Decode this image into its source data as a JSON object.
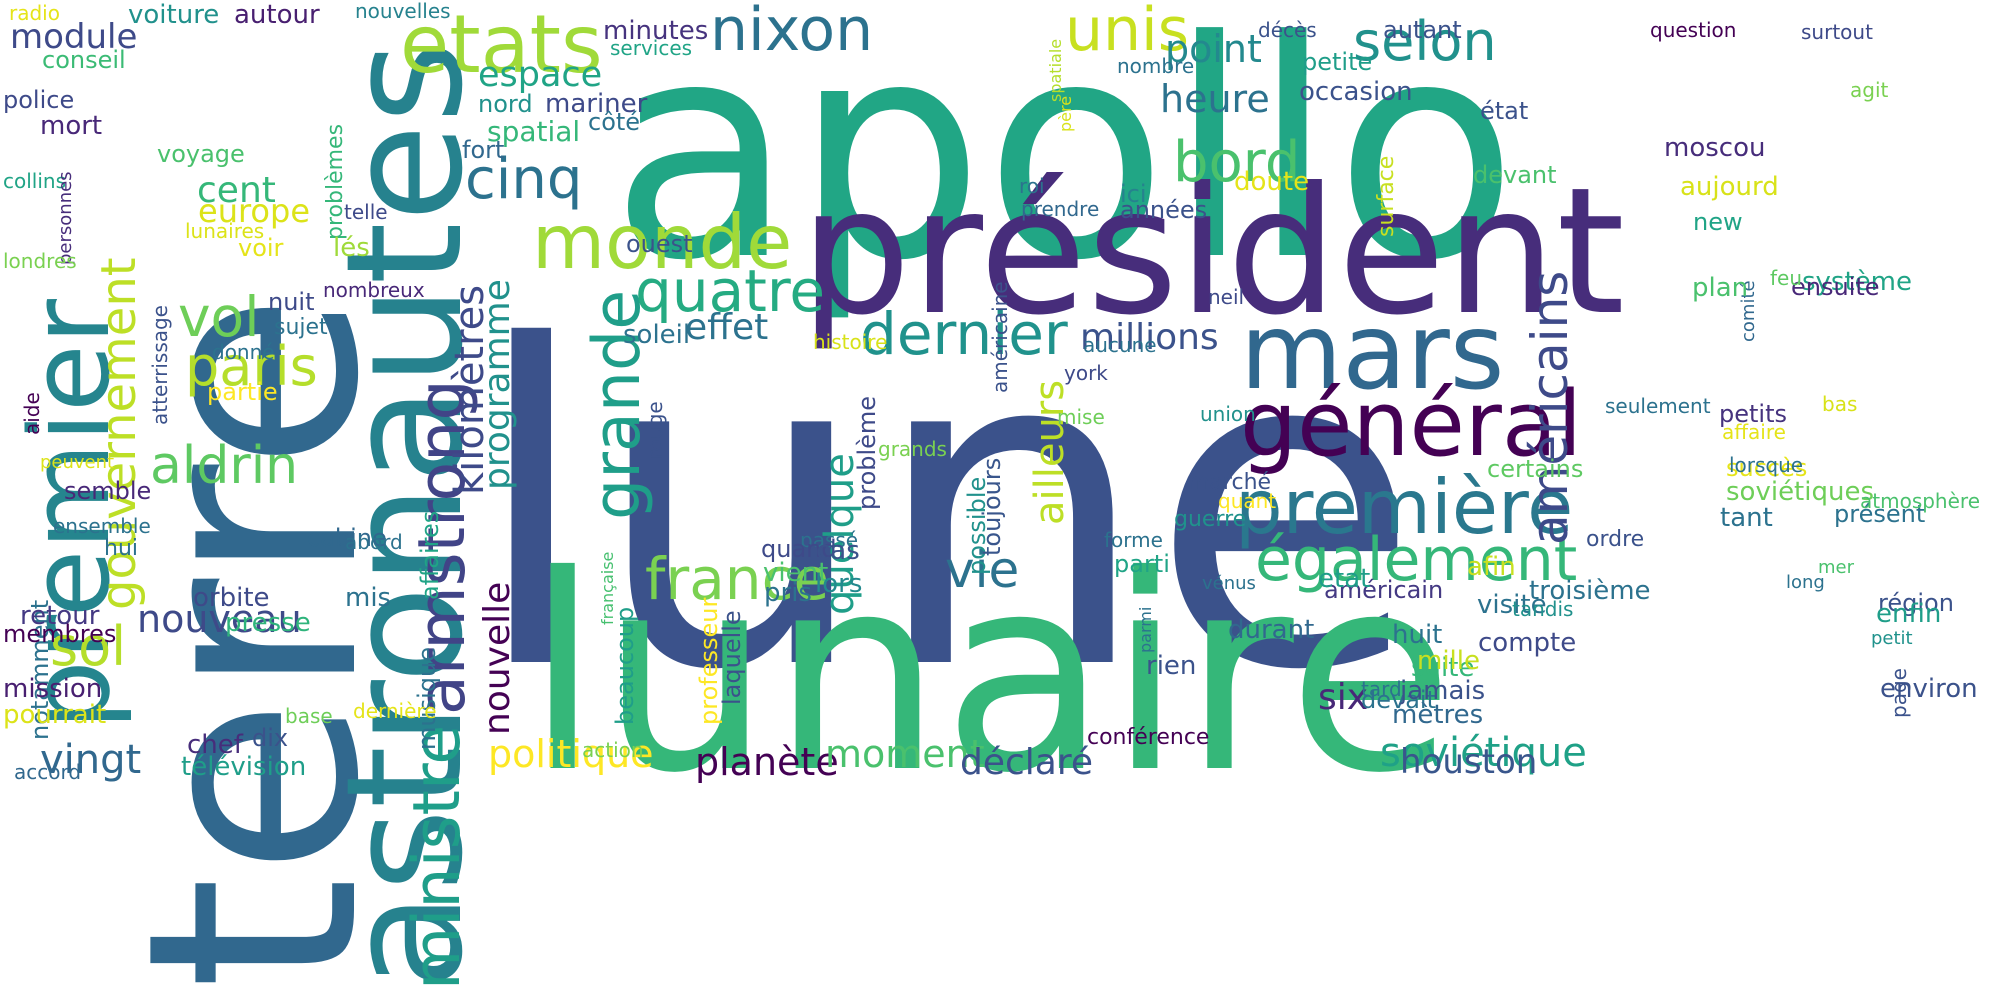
{
  "words": [
    {
      "text": "lune",
      "color": "#3b528b"
    },
    {
      "text": "apollo",
      "color": "#21a685"
    },
    {
      "text": "terre",
      "color": "#31688e"
    },
    {
      "text": "lunaire",
      "color": "#35b779"
    },
    {
      "text": "président",
      "color": "#472d7b"
    },
    {
      "text": "astronautes",
      "color": "#26828e"
    },
    {
      "text": "premier",
      "color": "#25858e"
    },
    {
      "text": "mars",
      "color": "#31688e"
    },
    {
      "text": "général",
      "color": "#440154"
    },
    {
      "text": "première",
      "color": "#2a788e"
    },
    {
      "text": "armstrong",
      "color": "#414487"
    },
    {
      "text": "ministre",
      "color": "#1f9e89"
    },
    {
      "text": "monde",
      "color": "#a0da39"
    },
    {
      "text": "etats",
      "color": "#a0da39"
    },
    {
      "text": "grande",
      "color": "#1f9e89"
    },
    {
      "text": "nixon",
      "color": "#2c728e"
    },
    {
      "text": "unis",
      "color": "#c8e020"
    },
    {
      "text": "également",
      "color": "#35b779"
    },
    {
      "text": "gouvernement",
      "color": "#bddf26"
    },
    {
      "text": "quatre",
      "color": "#25ab82"
    },
    {
      "text": "france",
      "color": "#7ad151"
    },
    {
      "text": "dernier",
      "color": "#20928c"
    },
    {
      "text": "selon",
      "color": "#21918c"
    },
    {
      "text": "américains",
      "color": "#3e4a89"
    },
    {
      "text": "cinq",
      "color": "#2c728e"
    },
    {
      "text": "bord",
      "color": "#4ac16d"
    },
    {
      "text": "vol",
      "color": "#6ece58"
    },
    {
      "text": "paris",
      "color": "#b5de2b"
    },
    {
      "text": "aldrin",
      "color": "#5ec962"
    },
    {
      "text": "sol",
      "color": "#b5de2b"
    },
    {
      "text": "vie",
      "color": "#2c728e"
    },
    {
      "text": "kilomètres",
      "color": "#3e4a89"
    },
    {
      "text": "quelque",
      "color": "#1f9e89"
    },
    {
      "text": "programme",
      "color": "#21918c"
    },
    {
      "text": "nouvelle",
      "color": "#440154"
    },
    {
      "text": "ailleurs",
      "color": "#bddf26"
    },
    {
      "text": "soviétique",
      "color": "#1fa187"
    },
    {
      "text": "politique",
      "color": "#fde725"
    },
    {
      "text": "planète",
      "color": "#440154"
    },
    {
      "text": "moment",
      "color": "#4ac16d"
    },
    {
      "text": "déclaré",
      "color": "#3b528b"
    },
    {
      "text": "houston",
      "color": "#39568c"
    },
    {
      "text": "vingt",
      "color": "#31688e"
    },
    {
      "text": "nouveau",
      "color": "#3e4a89"
    },
    {
      "text": "point",
      "color": "#23898e"
    },
    {
      "text": "heure",
      "color": "#2c728e"
    },
    {
      "text": "effet",
      "color": "#2c728e"
    },
    {
      "text": "millions",
      "color": "#3b528b"
    },
    {
      "text": "espace",
      "color": "#20a486"
    },
    {
      "text": "module",
      "color": "#3e4a89"
    },
    {
      "text": "cent",
      "color": "#35b779"
    },
    {
      "text": "europe",
      "color": "#dce319"
    },
    {
      "text": "six",
      "color": "#482878"
    },
    {
      "text": "spatial",
      "color": "#35b779"
    },
    {
      "text": "mariner",
      "color": "#3e4a89"
    },
    {
      "text": "nord",
      "color": "#21918c"
    },
    {
      "text": "fort",
      "color": "#31688e"
    },
    {
      "text": "côté",
      "color": "#2c728e"
    },
    {
      "text": "minutes",
      "color": "#46337e"
    },
    {
      "text": "services",
      "color": "#20a486"
    },
    {
      "text": "voiture",
      "color": "#21918c"
    },
    {
      "text": "autour",
      "color": "#481f70"
    },
    {
      "text": "nouvelles",
      "color": "#26828e"
    },
    {
      "text": "radio",
      "color": "#e5e419"
    },
    {
      "text": "conseil",
      "color": "#3bbb75"
    },
    {
      "text": "police",
      "color": "#3e4a89"
    },
    {
      "text": "mort",
      "color": "#482878"
    },
    {
      "text": "voyage",
      "color": "#4ac16d"
    },
    {
      "text": "collins",
      "color": "#20a486"
    },
    {
      "text": "personnes",
      "color": "#472d7b"
    },
    {
      "text": "problèmes",
      "color": "#35b779"
    },
    {
      "text": "lunaires",
      "color": "#dce319"
    },
    {
      "text": "voir",
      "color": "#e5e419"
    },
    {
      "text": "telle",
      "color": "#3e4a89"
    },
    {
      "text": "lés",
      "color": "#9fda3a"
    },
    {
      "text": "londres",
      "color": "#7ad151"
    },
    {
      "text": "atterrissage",
      "color": "#3b528b"
    },
    {
      "text": "nombreux",
      "color": "#482878"
    },
    {
      "text": "aide",
      "color": "#440154"
    },
    {
      "text": "nuit",
      "color": "#3e4a89"
    },
    {
      "text": "sujet",
      "color": "#2c728e"
    },
    {
      "text": "donné",
      "color": "#2c728e"
    },
    {
      "text": "partie",
      "color": "#fde725"
    },
    {
      "text": "peuvent",
      "color": "#dce319"
    },
    {
      "text": "semble",
      "color": "#482878"
    },
    {
      "text": "notamment",
      "color": "#2c728e"
    },
    {
      "text": "ensemble",
      "color": "#2c728e"
    },
    {
      "text": "hui",
      "color": "#2c728e"
    },
    {
      "text": "retour",
      "color": "#443983"
    },
    {
      "text": "membres",
      "color": "#440154"
    },
    {
      "text": "mission",
      "color": "#481f70"
    },
    {
      "text": "pourrait",
      "color": "#dce319"
    },
    {
      "text": "chef",
      "color": "#472d7b"
    },
    {
      "text": "dix",
      "color": "#3b528b"
    },
    {
      "text": "télévision",
      "color": "#1f9e89"
    },
    {
      "text": "accord",
      "color": "#31688e"
    },
    {
      "text": "affaires",
      "color": "#20a486"
    },
    {
      "text": "cabine",
      "color": "#31688e"
    },
    {
      "text": "abord",
      "color": "#2c728e"
    },
    {
      "text": "mis",
      "color": "#2c728e"
    },
    {
      "text": "musique",
      "color": "#2c728e"
    },
    {
      "text": "orbite",
      "color": "#3e4a89"
    },
    {
      "text": "presse",
      "color": "#2fb47c"
    },
    {
      "text": "base",
      "color": "#6ece58"
    },
    {
      "text": "dernière",
      "color": "#e5e419"
    },
    {
      "text": "beaucoup",
      "color": "#1f9e89"
    },
    {
      "text": "professeur",
      "color": "#fde725"
    },
    {
      "text": "action",
      "color": "#7ad151"
    },
    {
      "text": "laquelle",
      "color": "#3b528b"
    },
    {
      "text": "française",
      "color": "#46c06f"
    },
    {
      "text": "passé",
      "color": "#2c728e"
    },
    {
      "text": "soleil",
      "color": "#2c728e"
    },
    {
      "text": "ouest",
      "color": "#3b528b"
    },
    {
      "text": "histoire",
      "color": "#d8e219"
    },
    {
      "text": "problème",
      "color": "#3e4a89"
    },
    {
      "text": "possible",
      "color": "#21918c"
    },
    {
      "text": "toujours",
      "color": "#39568c"
    },
    {
      "text": "grands",
      "color": "#7ad151"
    },
    {
      "text": "quand",
      "color": "#3e4a89"
    },
    {
      "text": "vient",
      "color": "#4ac16d"
    },
    {
      "text": "pris",
      "color": "#2c728e"
    },
    {
      "text": "lors",
      "color": "#23898e"
    },
    {
      "text": "cas",
      "color": "#3b528b"
    },
    {
      "text": "rouge",
      "color": "#3b528b"
    },
    {
      "text": "américaine",
      "color": "#3b528b"
    },
    {
      "text": "roi",
      "color": "#2c728e"
    },
    {
      "text": "père",
      "color": "#d8e219"
    },
    {
      "text": "spatiale",
      "color": "#b5de2b"
    },
    {
      "text": "nombre",
      "color": "#2c728e"
    },
    {
      "text": "prendre",
      "color": "#31688e"
    },
    {
      "text": "années",
      "color": "#3b528b"
    },
    {
      "text": "ici",
      "color": "#26828e"
    },
    {
      "text": "york",
      "color": "#3e4a89"
    },
    {
      "text": "aucune",
      "color": "#2c728e"
    },
    {
      "text": "neil",
      "color": "#3e4a89"
    },
    {
      "text": "mise",
      "color": "#6ece58"
    },
    {
      "text": "union",
      "color": "#21918c"
    },
    {
      "text": "marché",
      "color": "#3b528b"
    },
    {
      "text": "quant",
      "color": "#fde725"
    },
    {
      "text": "guerre",
      "color": "#20928c"
    },
    {
      "text": "forme",
      "color": "#2c728e"
    },
    {
      "text": "parti",
      "color": "#20a486"
    },
    {
      "text": "vénus",
      "color": "#2c728e"
    },
    {
      "text": "conférence",
      "color": "#440154"
    },
    {
      "text": "rien",
      "color": "#3b528b"
    },
    {
      "text": "parmi",
      "color": "#2c728e"
    },
    {
      "text": "durant",
      "color": "#31688e"
    },
    {
      "text": "huit",
      "color": "#2c728e"
    },
    {
      "text": "suite",
      "color": "#35b779"
    },
    {
      "text": "devait",
      "color": "#2c728e"
    },
    {
      "text": "tard",
      "color": "#2c728e"
    },
    {
      "text": "page",
      "color": "#3b528b"
    },
    {
      "text": "jamais",
      "color": "#3b528b"
    },
    {
      "text": "mètres",
      "color": "#31688e"
    },
    {
      "text": "mille",
      "color": "#c8e020"
    },
    {
      "text": "compte",
      "color": "#3e4a89"
    },
    {
      "text": "visite",
      "color": "#2c728e"
    },
    {
      "text": "troisième",
      "color": "#2c728e"
    },
    {
      "text": "tandis",
      "color": "#21918c"
    },
    {
      "text": "américain",
      "color": "#443983"
    },
    {
      "text": "etat",
      "color": "#1f9e89"
    },
    {
      "text": "soviétiques",
      "color": "#6ece58"
    },
    {
      "text": "certains",
      "color": "#5ec962"
    },
    {
      "text": "succès",
      "color": "#e5e419"
    },
    {
      "text": "lorsque",
      "color": "#2c728e"
    },
    {
      "text": "ordre",
      "color": "#3b528b"
    },
    {
      "text": "afin",
      "color": "#c8e020"
    },
    {
      "text": "tant",
      "color": "#2c728e"
    },
    {
      "text": "présent",
      "color": "#2c728e"
    },
    {
      "text": "atmosphère",
      "color": "#4ac16d"
    },
    {
      "text": "seulement",
      "color": "#2c728e"
    },
    {
      "text": "bas",
      "color": "#d8e219"
    },
    {
      "text": "petits",
      "color": "#46337e"
    },
    {
      "text": "affaire",
      "color": "#e5e419"
    },
    {
      "text": "comité",
      "color": "#31688e"
    },
    {
      "text": "mer",
      "color": "#4ac16d"
    },
    {
      "text": "long",
      "color": "#2c728e"
    },
    {
      "text": "région",
      "color": "#3b528b"
    },
    {
      "text": "petit",
      "color": "#20928c"
    },
    {
      "text": "environ",
      "color": "#3b528b"
    },
    {
      "text": "enfin",
      "color": "#1f9e89"
    },
    {
      "text": "système",
      "color": "#20a486"
    },
    {
      "text": "ensuite",
      "color": "#482878"
    },
    {
      "text": "feu",
      "color": "#5ec962"
    },
    {
      "text": "plan",
      "color": "#4ac16d"
    },
    {
      "text": "new",
      "color": "#20a486"
    },
    {
      "text": "aujourd",
      "color": "#d8e219"
    },
    {
      "text": "moscou",
      "color": "#472d7b"
    },
    {
      "text": "doute",
      "color": "#e5e419"
    },
    {
      "text": "surface",
      "color": "#c8e020"
    },
    {
      "text": "devant",
      "color": "#4ac16d"
    },
    {
      "text": "état",
      "color": "#3b528b"
    },
    {
      "text": "petite",
      "color": "#1f9e89"
    },
    {
      "text": "occasion",
      "color": "#3b528b"
    },
    {
      "text": "autant",
      "color": "#3b528b"
    },
    {
      "text": "décès",
      "color": "#3b528b"
    },
    {
      "text": "question",
      "color": "#440154"
    },
    {
      "text": "surtout",
      "color": "#3e4a89"
    },
    {
      "text": "agit",
      "color": "#7ad151"
    }
  ]
}
